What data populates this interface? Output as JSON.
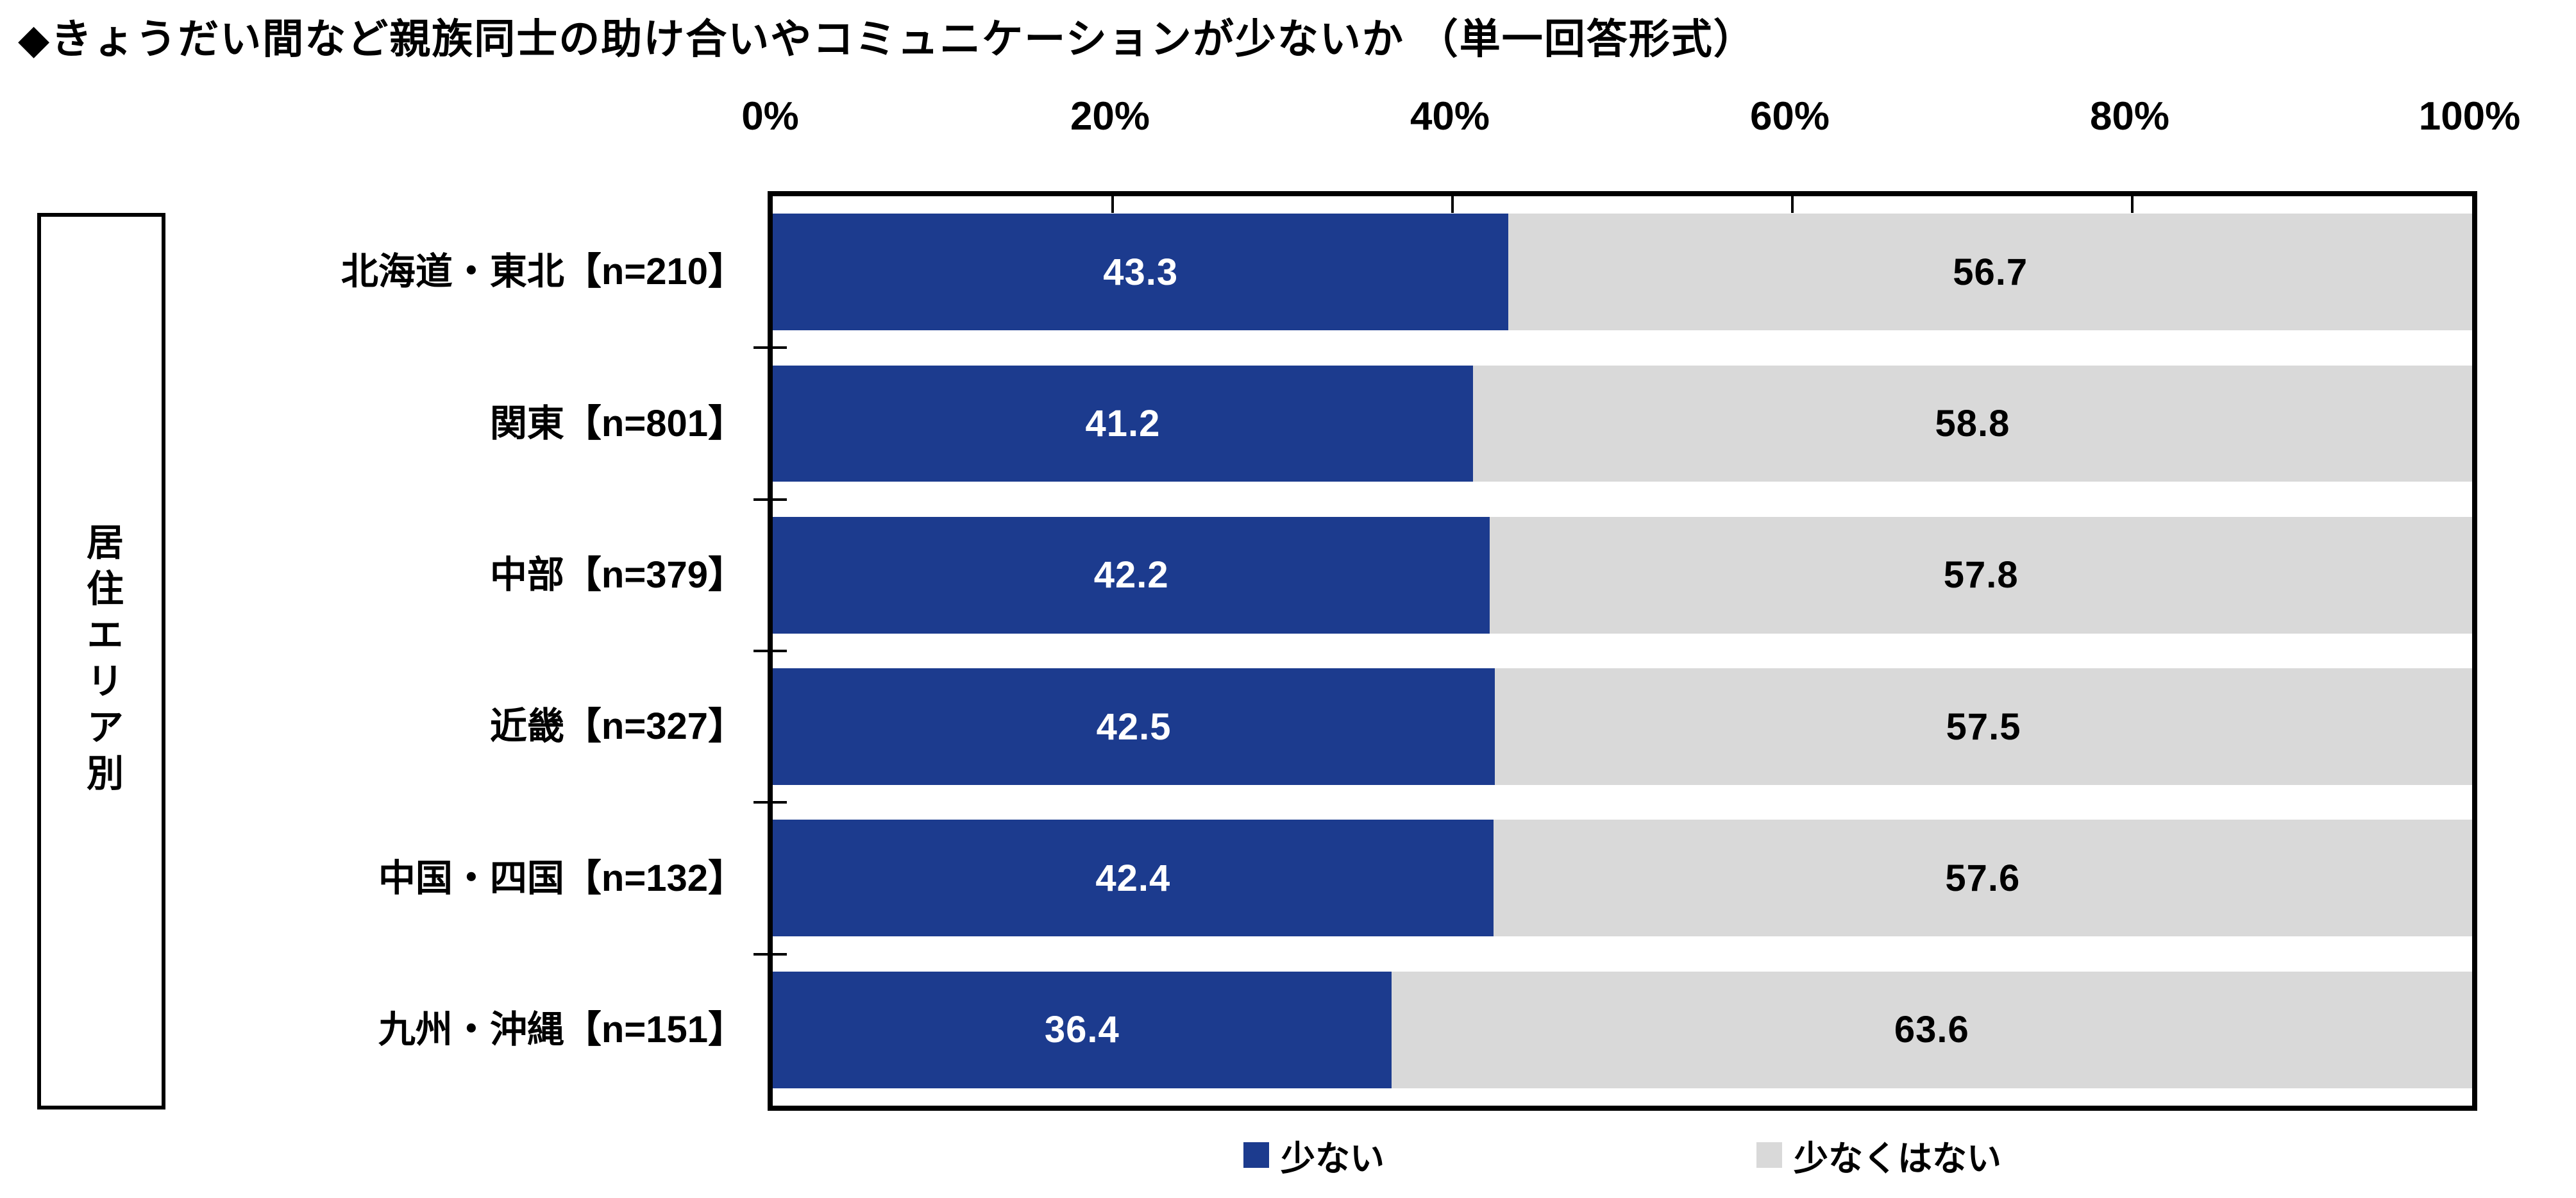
{
  "title": "◆きょうだい間など親族同士の助け合いやコミュニケーションが少ないか （単一回答形式）",
  "sidebar": {
    "label": "居住エリア別"
  },
  "legend": [
    {
      "label": "少ない",
      "color": "#1C3B8E"
    },
    {
      "label": "少なくはない",
      "color": "#D9D9D9"
    }
  ],
  "colors": {
    "series1": "#1C3B8E",
    "series2": "#D9D9D9",
    "series1_text": "#FFFFFF",
    "series2_text": "#000000",
    "axis": "#000000"
  },
  "chart_data": {
    "type": "bar",
    "orientation": "horizontal",
    "stacked": true,
    "title": "◆きょうだい間など親族同士の助け合いやコミュニケーションが少ないか （単一回答形式）",
    "group_label": "居住エリア別",
    "categories": [
      "北海道・東北【n=210】",
      "関東【n=801】",
      "中部【n=379】",
      "近畿【n=327】",
      "中国・四国【n=132】",
      "九州・沖縄【n=151】"
    ],
    "series": [
      {
        "name": "少ない",
        "color": "#1C3B8E",
        "values": [
          43.3,
          41.2,
          42.2,
          42.5,
          42.4,
          36.4
        ]
      },
      {
        "name": "少なくはない",
        "color": "#D9D9D9",
        "values": [
          56.7,
          58.8,
          57.8,
          57.5,
          57.6,
          63.6
        ]
      }
    ],
    "xlim": [
      0,
      100
    ],
    "x_ticks": [
      "0%",
      "20%",
      "40%",
      "60%",
      "80%",
      "100%"
    ],
    "grid": false,
    "legend_position": "bottom"
  }
}
